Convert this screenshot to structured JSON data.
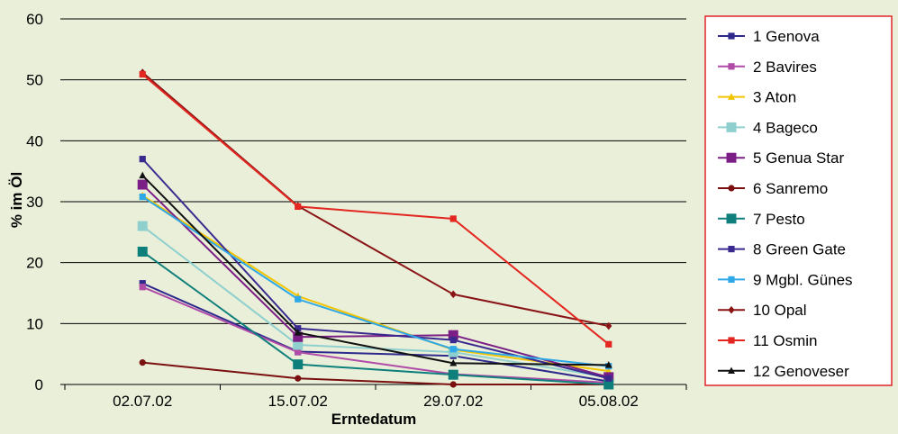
{
  "chart_data": {
    "type": "line",
    "x": [
      "02.07.02",
      "15.07.02",
      "29.07.02",
      "05.08.02"
    ],
    "xlabel": "Erntedatum",
    "ylabel": "% im Öl",
    "ylim": [
      0,
      60
    ],
    "yticks": [
      0,
      10,
      20,
      30,
      40,
      50,
      60
    ],
    "grid": true,
    "legend_position": "right",
    "series": [
      {
        "name": "1 Genova",
        "color": "#2e2a8c",
        "marker": "square",
        "values": [
          16.6,
          5.4,
          4.7,
          0.5
        ]
      },
      {
        "name": "2 Bavires",
        "color": "#b04ca8",
        "marker": "square",
        "values": [
          16.0,
          5.3,
          1.7,
          0.3
        ]
      },
      {
        "name": "3 Aton",
        "color": "#f2c400",
        "marker": "triangle",
        "values": [
          31.0,
          14.5,
          5.7,
          2.2
        ]
      },
      {
        "name": "4 Bageco",
        "color": "#8fd0cf",
        "marker": "square",
        "values": [
          26.0,
          6.5,
          5.3,
          1.2
        ]
      },
      {
        "name": "5 Genua Star",
        "color": "#7b1f86",
        "marker": "square",
        "values": [
          32.8,
          7.8,
          8.1,
          1.2
        ]
      },
      {
        "name": "6 Sanremo",
        "color": "#7a1010",
        "marker": "circle",
        "values": [
          3.6,
          1.0,
          0.0,
          0.0
        ]
      },
      {
        "name": "7 Pesto",
        "color": "#0f7f7b",
        "marker": "square",
        "values": [
          21.8,
          3.3,
          1.6,
          0.0
        ]
      },
      {
        "name": "8 Green Gate",
        "color": "#3a2a90",
        "marker": "square",
        "values": [
          37.0,
          9.2,
          7.3,
          1.0
        ]
      },
      {
        "name": "9 Mgbl. Günes",
        "color": "#2ea8e6",
        "marker": "square",
        "values": [
          30.8,
          14.0,
          5.8,
          3.0
        ]
      },
      {
        "name": "10 Opal",
        "color": "#8a1416",
        "marker": "diamond",
        "values": [
          51.2,
          29.3,
          14.8,
          9.6
        ]
      },
      {
        "name": "11 Osmin",
        "color": "#e3261f",
        "marker": "square",
        "values": [
          50.9,
          29.2,
          27.2,
          6.6
        ]
      },
      {
        "name": "12 Genoveser",
        "color": "#111111",
        "marker": "triangle",
        "values": [
          34.3,
          8.5,
          3.5,
          3.2
        ]
      }
    ]
  }
}
